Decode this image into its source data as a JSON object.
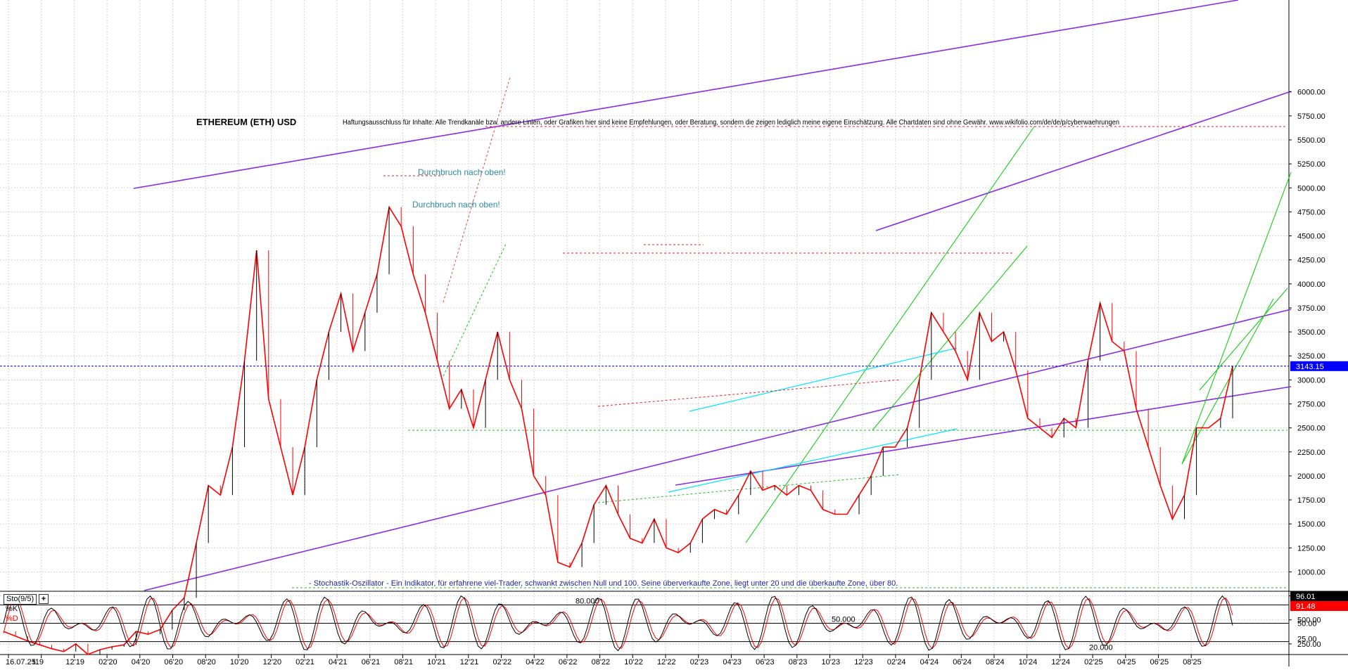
{
  "chart_data": {
    "type": "line",
    "title": "ETHEREUM (ETH) USD",
    "subtitle": "Haftungsausschluss für Inhalte: Alle Trendkanäle bzw. andere Linien, oder Grafiken hier sind keine Empfehlungen, oder Beratung, sondern die zeigen lediglich meine eigene Einschätzung. Alle Chartdaten sind ohne Gewähr.  www.wikifolio.com/de/de/p/cyberwaehrungen",
    "annotations": [
      "Durchbruch nach oben!",
      "Durchbruch nach oben!"
    ],
    "price_axis": {
      "ticks": [
        "250.00",
        "500.00",
        "750.00",
        "1000.00",
        "1250.00",
        "1500.00",
        "1750.00",
        "2000.00",
        "2250.00",
        "2500.00",
        "2750.00",
        "3000.00",
        "3250.00",
        "3500.00",
        "3750.00",
        "4000.00",
        "4250.00",
        "4500.00",
        "4750.00",
        "5000.00",
        "5250.00",
        "5500.00",
        "5750.00",
        "6000.00"
      ],
      "ylim": [
        0,
        6150
      ],
      "last_price": "3143.15",
      "last_price_value": 3143.15
    },
    "x_axis": {
      "ticks": [
        "16.07.25",
        "t19",
        "12'19",
        "02'20",
        "04'20",
        "06'20",
        "08'20",
        "10'20",
        "12'20",
        "02'21",
        "04'21",
        "06'21",
        "08'21",
        "10'21",
        "12'21",
        "02'22",
        "04'22",
        "06'22",
        "08'22",
        "10'22",
        "12'22",
        "02'23",
        "04'23",
        "06'23",
        "08'23",
        "10'23",
        "12'23",
        "02'24",
        "04'24",
        "06'24",
        "08'24",
        "10'24",
        "12'24",
        "02'25",
        "04'25",
        "06'25",
        "08'25"
      ]
    },
    "price_series": [
      {
        "t": 0,
        "v": 380
      },
      {
        "t": 1,
        "v": 330
      },
      {
        "t": 2,
        "v": 280
      },
      {
        "t": 3,
        "v": 240
      },
      {
        "t": 4,
        "v": 200
      },
      {
        "t": 5,
        "v": 170
      },
      {
        "t": 6,
        "v": 250
      },
      {
        "t": 7,
        "v": 140
      },
      {
        "t": 8,
        "v": 190
      },
      {
        "t": 9,
        "v": 220
      },
      {
        "t": 10,
        "v": 240
      },
      {
        "t": 11,
        "v": 380
      },
      {
        "t": 12,
        "v": 350
      },
      {
        "t": 13,
        "v": 400
      },
      {
        "t": 14,
        "v": 600
      },
      {
        "t": 15,
        "v": 730
      },
      {
        "t": 16,
        "v": 1300
      },
      {
        "t": 17,
        "v": 1900
      },
      {
        "t": 18,
        "v": 1800
      },
      {
        "t": 19,
        "v": 2300
      },
      {
        "t": 20,
        "v": 3200
      },
      {
        "t": 21,
        "v": 4350
      },
      {
        "t": 22,
        "v": 2800
      },
      {
        "t": 23,
        "v": 2300
      },
      {
        "t": 24,
        "v": 1800
      },
      {
        "t": 25,
        "v": 2300
      },
      {
        "t": 26,
        "v": 3000
      },
      {
        "t": 27,
        "v": 3500
      },
      {
        "t": 28,
        "v": 3900
      },
      {
        "t": 29,
        "v": 3300
      },
      {
        "t": 30,
        "v": 3700
      },
      {
        "t": 31,
        "v": 4100
      },
      {
        "t": 32,
        "v": 4800
      },
      {
        "t": 33,
        "v": 4600
      },
      {
        "t": 34,
        "v": 4100
      },
      {
        "t": 35,
        "v": 3700
      },
      {
        "t": 36,
        "v": 3200
      },
      {
        "t": 37,
        "v": 2700
      },
      {
        "t": 38,
        "v": 2900
      },
      {
        "t": 39,
        "v": 2500
      },
      {
        "t": 40,
        "v": 3000
      },
      {
        "t": 41,
        "v": 3500
      },
      {
        "t": 42,
        "v": 3000
      },
      {
        "t": 43,
        "v": 2700
      },
      {
        "t": 44,
        "v": 2000
      },
      {
        "t": 45,
        "v": 1800
      },
      {
        "t": 46,
        "v": 1100
      },
      {
        "t": 47,
        "v": 1050
      },
      {
        "t": 48,
        "v": 1300
      },
      {
        "t": 49,
        "v": 1700
      },
      {
        "t": 50,
        "v": 1900
      },
      {
        "t": 51,
        "v": 1600
      },
      {
        "t": 52,
        "v": 1350
      },
      {
        "t": 53,
        "v": 1300
      },
      {
        "t": 54,
        "v": 1550
      },
      {
        "t": 55,
        "v": 1250
      },
      {
        "t": 56,
        "v": 1200
      },
      {
        "t": 57,
        "v": 1300
      },
      {
        "t": 58,
        "v": 1550
      },
      {
        "t": 59,
        "v": 1650
      },
      {
        "t": 60,
        "v": 1600
      },
      {
        "t": 61,
        "v": 1800
      },
      {
        "t": 62,
        "v": 2050
      },
      {
        "t": 63,
        "v": 1850
      },
      {
        "t": 64,
        "v": 1900
      },
      {
        "t": 65,
        "v": 1800
      },
      {
        "t": 66,
        "v": 1900
      },
      {
        "t": 67,
        "v": 1850
      },
      {
        "t": 68,
        "v": 1650
      },
      {
        "t": 69,
        "v": 1600
      },
      {
        "t": 70,
        "v": 1600
      },
      {
        "t": 71,
        "v": 1800
      },
      {
        "t": 72,
        "v": 2000
      },
      {
        "t": 73,
        "v": 2300
      },
      {
        "t": 74,
        "v": 2300
      },
      {
        "t": 75,
        "v": 2500
      },
      {
        "t": 76,
        "v": 3000
      },
      {
        "t": 77,
        "v": 3700
      },
      {
        "t": 78,
        "v": 3500
      },
      {
        "t": 79,
        "v": 3300
      },
      {
        "t": 80,
        "v": 3000
      },
      {
        "t": 81,
        "v": 3700
      },
      {
        "t": 82,
        "v": 3400
      },
      {
        "t": 83,
        "v": 3500
      },
      {
        "t": 84,
        "v": 3100
      },
      {
        "t": 85,
        "v": 2600
      },
      {
        "t": 86,
        "v": 2500
      },
      {
        "t": 87,
        "v": 2400
      },
      {
        "t": 88,
        "v": 2600
      },
      {
        "t": 89,
        "v": 2500
      },
      {
        "t": 90,
        "v": 3200
      },
      {
        "t": 91,
        "v": 3800
      },
      {
        "t": 92,
        "v": 3400
      },
      {
        "t": 93,
        "v": 3300
      },
      {
        "t": 94,
        "v": 2700
      },
      {
        "t": 95,
        "v": 2300
      },
      {
        "t": 96,
        "v": 1900
      },
      {
        "t": 97,
        "v": 1550
      },
      {
        "t": 98,
        "v": 1800
      },
      {
        "t": 99,
        "v": 2500
      },
      {
        "t": 100,
        "v": 2500
      },
      {
        "t": 101,
        "v": 2600
      },
      {
        "t": 102,
        "v": 3143
      }
    ],
    "stochastic": {
      "indicator": "Sto(9/5)",
      "series": [
        {
          "name": "%K",
          "value": "96.01",
          "color": "#000000"
        },
        {
          "name": "%D",
          "value": "91.48",
          "color": "#ff0000"
        }
      ],
      "levels": [
        "80.000",
        "50.000",
        "20.000"
      ],
      "axis_ticks": [
        "75.00",
        "50.00",
        "25.00"
      ],
      "note": "- Stochastik-Oszillator - Ein Indikator, für erfahrene viel-Trader, schwankt zwischen Null und 100. Seine überverkaufte Zone, liegt unter 20 und die überkaufte Zone, über 80."
    },
    "grid": true,
    "colors": {
      "price_down": "#ff0000",
      "price_up": "#000000",
      "trend_purple": "#8a2be2",
      "trend_green": "#00cc00",
      "trend_cyan": "#00e5ff",
      "last_price_line": "#0000cc",
      "last_price_badge": "#0000ff",
      "d_badge": "#ff0000",
      "k_badge": "#000000"
    }
  }
}
